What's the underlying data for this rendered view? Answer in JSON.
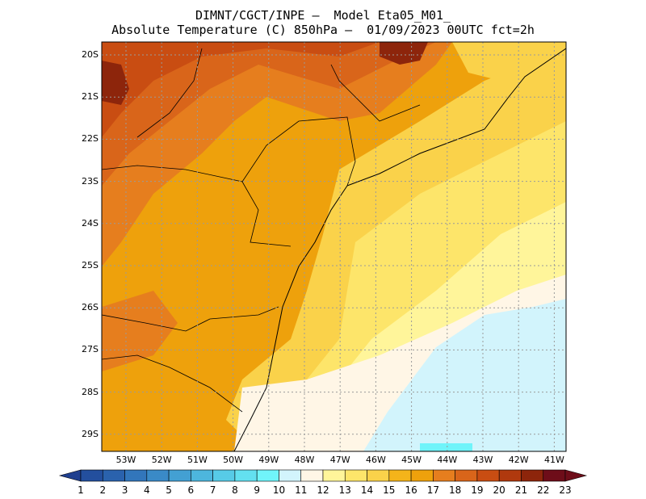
{
  "title_line1": "DIMNT/CGCT/INPE –  Model Eta05_M01_",
  "title_line2": "Absolute Temperature (C) 850hPa –  01/09/2023 00UTC fct=2h",
  "lat_labels": [
    "20S",
    "21S",
    "22S",
    "23S",
    "24S",
    "25S",
    "26S",
    "27S",
    "28S",
    "29S"
  ],
  "lon_labels": [
    "53W",
    "52W",
    "51W",
    "50W",
    "49W",
    "48W",
    "47W",
    "46W",
    "45W",
    "44W",
    "43W",
    "42W",
    "41W"
  ],
  "colorbar": {
    "labels": [
      "1",
      "2",
      "3",
      "4",
      "5",
      "6",
      "7",
      "8",
      "9",
      "10",
      "11",
      "12",
      "13",
      "14",
      "15",
      "16",
      "17",
      "18",
      "19",
      "20",
      "21",
      "22",
      "23"
    ],
    "colors": [
      "#1f3f8f",
      "#234f9e",
      "#2a62ad",
      "#3276bb",
      "#3a8ac7",
      "#43a0d3",
      "#4db6dd",
      "#57cbe7",
      "#63e0f0",
      "#70f4fa",
      "#d2f4fc",
      "#fff6e6",
      "#fff59a",
      "#fde56a",
      "#fad24a",
      "#f4b41a",
      "#eea10c",
      "#e67e1e",
      "#d9651a",
      "#c94d12",
      "#b0390e",
      "#8d250b",
      "#6e0d19"
    ]
  }
}
